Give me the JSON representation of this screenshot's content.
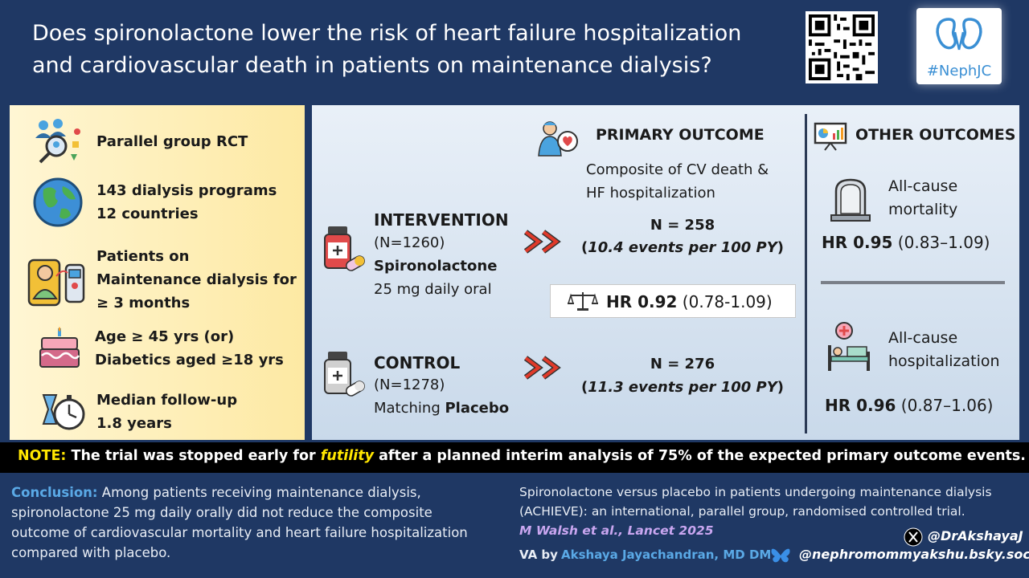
{
  "header": {
    "title_line1": "Does spironolactone lower the risk of heart failure hospitalization",
    "title_line2": "and cardiovascular death in patients on maintenance dialysis?",
    "logo_text": "#NephJC"
  },
  "design": {
    "items": [
      {
        "icon": "population-search-icon",
        "lines": [
          "Parallel group RCT"
        ]
      },
      {
        "icon": "globe-icon",
        "lines": [
          "143 dialysis programs",
          "12 countries"
        ]
      },
      {
        "icon": "dialysis-patient-icon",
        "lines": [
          "Patients on",
          "Maintenance dialysis for",
          "≥ 3 months"
        ]
      },
      {
        "icon": "birthday-cake-icon",
        "lines": [
          "Age ≥ 45 yrs (or)",
          "Diabetics aged ≥18 yrs"
        ]
      },
      {
        "icon": "stopwatch-icon",
        "lines": [
          "Median follow-up",
          "1.8 years"
        ]
      }
    ]
  },
  "intervention": {
    "title": "INTERVENTION",
    "n": "(N=1260)",
    "drug": "Spironolactone",
    "dose": "25 mg daily oral"
  },
  "control": {
    "title": "CONTROL",
    "n": "(N=1278)",
    "prefix": "Matching ",
    "drug": "Placebo"
  },
  "primary": {
    "heading": "PRIMARY OUTCOME",
    "desc_line1": "Composite of  CV death &",
    "desc_line2": "HF hospitalization",
    "intervention_n": "N = 258",
    "intervention_rate": "10.4 events per 100 PY",
    "control_n": "N = 276",
    "control_rate": "11.3 events per 100 PY",
    "hr_label": "HR 0.92",
    "hr_ci": " (0.78-1.09)"
  },
  "other": {
    "heading": "OTHER OUTCOMES",
    "mortality_line1": "All-cause",
    "mortality_line2": "mortality",
    "mortality_hr": "HR 0.95",
    "mortality_ci": " (0.83–1.09)",
    "hosp_line1": "All-cause",
    "hosp_line2": "hospitalization",
    "hosp_hr": "HR 0.96",
    "hosp_ci": " (0.87–1.06)"
  },
  "note": {
    "label": "NOTE:",
    "pre": " The trial was stopped early for ",
    "emph": "futility",
    "post": " after a planned interim analysis of 75% of the expected primary outcome events."
  },
  "conclusion": {
    "label": "Conclusion:",
    "line1": " Among patients receiving maintenance dialysis,",
    "line2": "spironolactone 25 mg daily orally did not reduce the composite",
    "line3": "outcome of cardiovascular mortality and heart failure hospitalization",
    "line4": "compared with placebo."
  },
  "citation": {
    "line1": "Spironolactone versus placebo in patients undergoing maintenance dialysis",
    "line2": "(ACHIEVE): an international, parallel group, randomised controlled trial.",
    "ref": "M Walsh et al., Lancet 2025"
  },
  "credits": {
    "va_label": "VA by",
    "author": "Akshaya Jayachandran, MD DM",
    "x_handle": "@DrAkshayaJ",
    "bsky_handle": "@nephromommyakshu.bsky.social"
  },
  "colors": {
    "navy": "#1f3864",
    "note_yellow": "#ffe600",
    "link_blue": "#5aa9e6",
    "arrow_red": "#e03a2a"
  }
}
